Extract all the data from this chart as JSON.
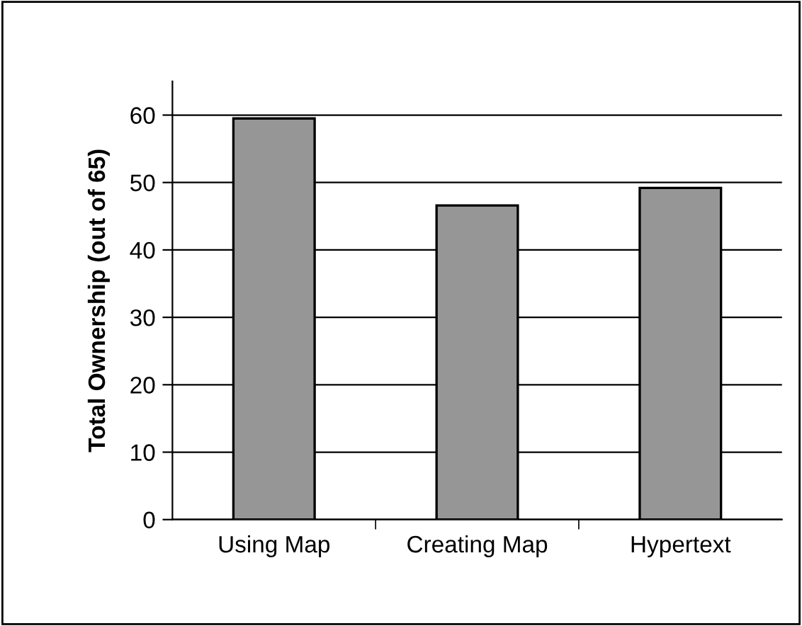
{
  "chart_data": {
    "type": "bar",
    "ylabel": "Total Ownership (out of 65)",
    "categories": [
      "Using Map",
      "Creating Map",
      "Hypertext"
    ],
    "values": [
      59.5,
      46.6,
      49.2
    ],
    "color": "#969696",
    "ylim": [
      0,
      65
    ],
    "yticks": [
      0,
      10,
      20,
      30,
      40,
      50,
      60
    ],
    "grid": "y"
  }
}
